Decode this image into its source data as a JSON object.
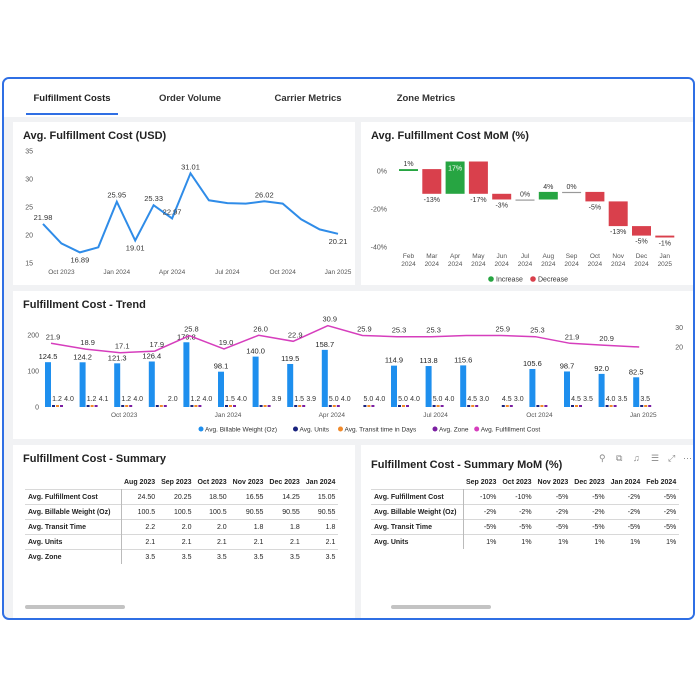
{
  "tabs": [
    {
      "label": "Fulfillment Costs"
    },
    {
      "label": "Order Volume"
    },
    {
      "label": "Carrier Metrics"
    },
    {
      "label": "Zone Metrics"
    }
  ],
  "colors": {
    "accent": "#2f6fe4",
    "line": "#2f8ce8",
    "bar": "#1e8fee",
    "increase": "#27a542",
    "decrease": "#d9404c",
    "pink": "#d63ebd"
  },
  "panel1": {
    "title": "Avg. Fulfillment Cost (USD)",
    "chart_data": {
      "type": "line",
      "title": "Avg. Fulfillment Cost (USD)",
      "x": [
        "Sep 2023",
        "Oct 2023",
        "Nov 2023",
        "Dec 2023",
        "Jan 2024",
        "Feb 2024",
        "Mar 2024",
        "Apr 2024",
        "May 2024",
        "Jun 2024",
        "Jul 2024",
        "Aug 2024",
        "Sep 2024",
        "Oct 2024",
        "Nov 2024",
        "Dec 2024",
        "Jan 2025"
      ],
      "values": [
        21.98,
        18.5,
        16.89,
        17.8,
        25.95,
        19.01,
        25.33,
        22.97,
        31.01,
        26.2,
        25.7,
        25.6,
        26.02,
        25.6,
        22.8,
        21.0,
        20.21
      ],
      "labels": {
        "0": "21.98",
        "2": "16.89",
        "4": "25.95",
        "5": "19.01",
        "6": "25.33",
        "7": "22.97",
        "8": "31.01",
        "12": "26.02",
        "16": "20.21"
      },
      "xticks": [
        "Oct 2023",
        "Jan 2024",
        "Apr 2024",
        "Jul 2024",
        "Oct 2024",
        "Jan 2025"
      ],
      "yticks": [
        15,
        20,
        25,
        30,
        35
      ],
      "ylim": [
        15,
        35
      ]
    }
  },
  "panel2": {
    "title": "Avg. Fulfillment Cost MoM (%)",
    "chart_data": {
      "type": "bar",
      "title": "Avg. Fulfillment Cost MoM (%)",
      "categories": [
        [
          "Feb",
          "2024"
        ],
        [
          "Mar",
          "2024"
        ],
        [
          "Apr",
          "2024"
        ],
        [
          "May",
          "2024"
        ],
        [
          "Jun",
          "2024"
        ],
        [
          "Jul",
          "2024"
        ],
        [
          "Aug",
          "2024"
        ],
        [
          "Sep",
          "2024"
        ],
        [
          "Oct",
          "2024"
        ],
        [
          "Nov",
          "2024"
        ],
        [
          "Dec",
          "2024"
        ],
        [
          "Jan",
          "2025"
        ]
      ],
      "values": [
        1,
        -13,
        17,
        -17,
        -3,
        0,
        4,
        0,
        -5,
        -13,
        -5,
        -1
      ],
      "labels": [
        "1%",
        "-13%",
        "17%",
        "-17%",
        "-3%",
        "0%",
        "4%",
        "0%",
        "-5%",
        "-13%",
        "-5%",
        "-1%"
      ],
      "yticks": [
        {
          "v": 0,
          "t": "0%"
        },
        {
          "v": -20,
          "t": "-20%"
        },
        {
          "v": -40,
          "t": "-40%"
        }
      ],
      "legend": [
        {
          "name": "Increase",
          "color": "#27a542"
        },
        {
          "name": "Decrease",
          "color": "#d9404c"
        }
      ]
    }
  },
  "panel3": {
    "title": "Fulfillment Cost - Trend",
    "chart_data": {
      "type": "bar",
      "title": "Fulfillment Cost - Trend",
      "categories": [
        "Aug 2023",
        "Sep 2023",
        "Oct 2023",
        "Nov 2023",
        "Dec 2023",
        "Jan 2024",
        "Feb 2024",
        "Mar 2024",
        "Apr 2024",
        "May 2024",
        "Jun 2024",
        "Jul 2024",
        "Aug 2024",
        "Sep 2024",
        "Oct 2024",
        "Nov 2024",
        "Dec 2024",
        "Jan 2025"
      ],
      "billable_weight": [
        124.5,
        124.2,
        121.3,
        126.4,
        179.8,
        98.1,
        140.0,
        119.5,
        158.7,
        null,
        114.9,
        113.8,
        115.6,
        null,
        105.6,
        98.7,
        92.0,
        82.5
      ],
      "billable_labels": [
        "124.5",
        "124.2",
        "121.3",
        "126.4",
        "179.8",
        "98.1",
        "140.0",
        "119.5",
        "158.7",
        "",
        "114.9",
        "113.8",
        "115.6",
        "",
        "105.6",
        "98.7",
        "92.0",
        "82.5"
      ],
      "inner_labels": [
        "1.2",
        "1.2",
        "1.2",
        "",
        "1.2",
        "1.5",
        "",
        "1.5",
        "5.0",
        "5.0",
        "5.0",
        "5.0",
        "4.5",
        "4.5",
        "",
        "4.5",
        "4.0",
        "3.5"
      ],
      "small_labels": [
        "4.0",
        "4.1",
        "4.0",
        "2.0",
        "4.0",
        "4.0",
        "3.9",
        "3.9",
        "4.0",
        "4.0",
        "4.0",
        "4.0",
        "3.0",
        "3.0",
        "",
        "3.5",
        "3.5",
        ""
      ],
      "fulfillment_cost": [
        21.9,
        18.9,
        17.1,
        17.9,
        25.8,
        19.0,
        26.0,
        22.9,
        30.9,
        25.9,
        25.3,
        25.3,
        25.9,
        25.9,
        25.3,
        21.9,
        20.9,
        20.0
      ],
      "fc_labels": [
        "21.9",
        "18.9",
        "17.1",
        "17.9",
        "25.8",
        "19.0",
        "26.0",
        "22.9",
        "30.9",
        "25.9",
        "25.3",
        "25.3",
        "",
        "25.9",
        "25.3",
        "21.9",
        "20.9",
        ""
      ],
      "xticks": [
        {
          "i": 2,
          "t": "Oct 2023"
        },
        {
          "i": 5,
          "t": "Jan 2024"
        },
        {
          "i": 8,
          "t": "Apr 2024"
        },
        {
          "i": 11,
          "t": "Jul 2024"
        },
        {
          "i": 14,
          "t": "Oct 2024"
        },
        {
          "i": 17,
          "t": "Jan 2025"
        }
      ],
      "yticks_left": [
        0,
        100,
        200
      ],
      "yticks_right": [
        20,
        30
      ],
      "legend": [
        {
          "name": "Avg. Billable Weight (Oz)",
          "color": "#1e8fee"
        },
        {
          "name": "Avg. Units",
          "color": "#1a237e"
        },
        {
          "name": "Avg. Transit time in Days",
          "color": "#f08a2b"
        },
        {
          "name": "Avg. Zone",
          "color": "#7b1fa2"
        },
        {
          "name": "Avg. Fulfillment Cost",
          "color": "#d63ebd"
        }
      ]
    }
  },
  "panel4": {
    "title": "Fulfillment Cost - Summary",
    "columns": [
      "Aug 2023",
      "Sep 2023",
      "Oct 2023",
      "Nov 2023",
      "Dec 2023",
      "Jan 2024"
    ],
    "rows": [
      {
        "label": "Avg. Fulfillment Cost",
        "values": [
          "24.50",
          "20.25",
          "18.50",
          "16.55",
          "14.25",
          "15.05"
        ]
      },
      {
        "label": "Avg. Billable Weight (Oz)",
        "values": [
          "100.5",
          "100.5",
          "100.5",
          "90.55",
          "90.55",
          "90.55"
        ]
      },
      {
        "label": "Avg. Transit Time",
        "values": [
          "2.2",
          "2.0",
          "2.0",
          "1.8",
          "1.8",
          "1.8"
        ]
      },
      {
        "label": "Avg. Units",
        "values": [
          "2.1",
          "2.1",
          "2.1",
          "2.1",
          "2.1",
          "2.1"
        ]
      },
      {
        "label": "Avg. Zone",
        "values": [
          "3.5",
          "3.5",
          "3.5",
          "3.5",
          "3.5",
          "3.5"
        ]
      }
    ]
  },
  "panel5": {
    "title": "Fulfillment Cost - Summary MoM (%)",
    "columns": [
      "Sep 2023",
      "Oct 2023",
      "Nov 2023",
      "Dec 2023",
      "Jan 2024",
      "Feb 2024"
    ],
    "rows": [
      {
        "label": "Avg. Fulfillment Cost",
        "values": [
          "-10%",
          "-10%",
          "-5%",
          "-5%",
          "-2%",
          "-5%"
        ]
      },
      {
        "label": "Avg. Billable Weight (Oz)",
        "values": [
          "-2%",
          "-2%",
          "-2%",
          "-2%",
          "-2%",
          "-2%"
        ]
      },
      {
        "label": "Avg. Transit Time",
        "values": [
          "-5%",
          "-5%",
          "-5%",
          "-5%",
          "-5%",
          "-5%"
        ]
      },
      {
        "label": "Avg. Units",
        "values": [
          "1%",
          "1%",
          "1%",
          "1%",
          "1%",
          "1%"
        ]
      }
    ],
    "toolbar_icons": [
      "pin-icon",
      "copy-icon",
      "bell-icon",
      "filter-icon",
      "expand-icon",
      "more-icon"
    ]
  }
}
